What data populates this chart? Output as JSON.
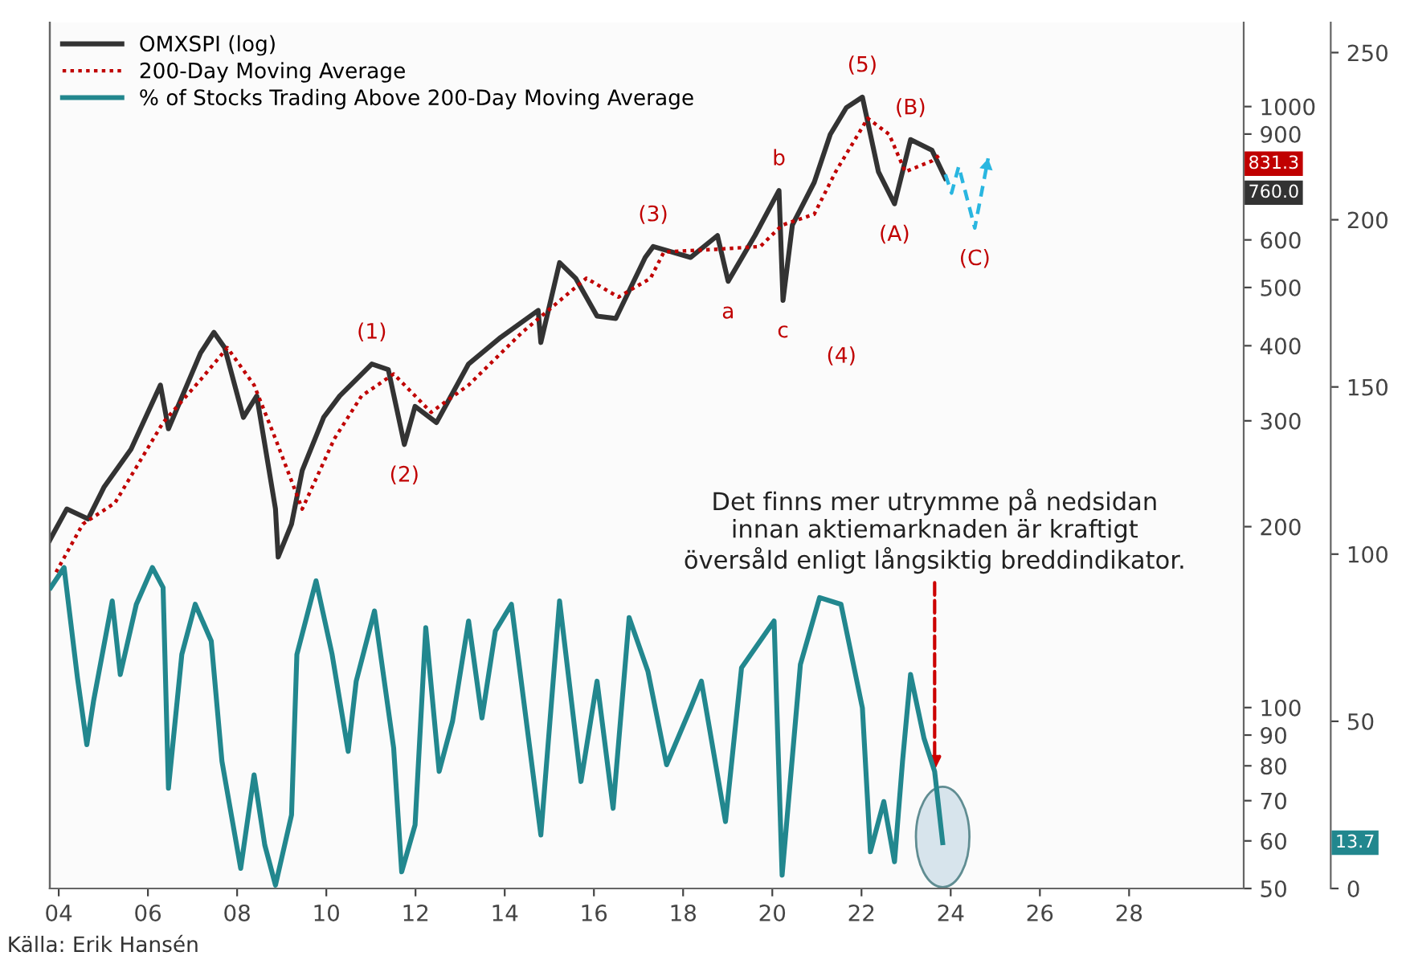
{
  "chart_data": {
    "type": "line",
    "xlim": [
      2003.8,
      2030.57
    ],
    "xticks": [
      {
        "value": 2004,
        "label": "04"
      },
      {
        "value": 2006,
        "label": "06"
      },
      {
        "value": 2008,
        "label": "08"
      },
      {
        "value": 2010,
        "label": "10"
      },
      {
        "value": 2012,
        "label": "12"
      },
      {
        "value": 2014,
        "label": "14"
      },
      {
        "value": 2016,
        "label": "16"
      },
      {
        "value": 2018,
        "label": "18"
      },
      {
        "value": 2020,
        "label": "20"
      },
      {
        "value": 2022,
        "label": "22"
      },
      {
        "value": 2024,
        "label": "24"
      },
      {
        "value": 2026,
        "label": "26"
      },
      {
        "value": 2028,
        "label": "28"
      }
    ],
    "log": true,
    "ylim": [
      50,
      1380
    ],
    "yticks": [
      50,
      60,
      70,
      80,
      90,
      100,
      200,
      300,
      400,
      500,
      600,
      900,
      1000
    ],
    "y2lim": [
      0,
      259
    ],
    "y2ticks": [
      0,
      50,
      100,
      150,
      200,
      250
    ],
    "legend": "top left",
    "grid": false,
    "series": [
      {
        "name": "OMXSPI (log)",
        "color": "#333333",
        "line_style": "solid",
        "x": [
          2003.8,
          2004.18,
          2004.66,
          2005.02,
          2005.62,
          2006.28,
          2006.46,
          2007.18,
          2007.48,
          2007.72,
          2008.14,
          2008.44,
          2008.86,
          2008.92,
          2009.22,
          2009.46,
          2009.94,
          2010.3,
          2011.02,
          2011.39,
          2011.75,
          2011.99,
          2012.47,
          2013.19,
          2013.91,
          2014.75,
          2014.81,
          2015.23,
          2015.59,
          2016.07,
          2016.49,
          2017.15,
          2017.33,
          2018.17,
          2018.77,
          2019.01,
          2019.61,
          2020.15,
          2020.24,
          2020.45,
          2020.94,
          2021.3,
          2021.66,
          2022.02,
          2022.38,
          2022.74,
          2023.1,
          2023.58,
          2023.88
        ],
        "values": [
          190,
          214,
          206,
          233,
          269,
          344,
          291,
          389,
          421,
          397,
          304,
          330,
          214,
          178,
          202,
          248,
          304,
          330,
          373,
          365,
          274,
          317,
          298,
          373,
          413,
          458,
          405,
          550,
          518,
          448,
          444,
          561,
          585,
          561,
          610,
          512,
          610,
          725,
          476,
          635,
          748,
          899,
          996,
          1037,
          779,
          689,
          881,
          846,
          760.0
        ]
      },
      {
        "name": "200-Day Moving Average",
        "color": "#c00000",
        "line_style": "dotted",
        "x": [
          2003.94,
          2004.54,
          2005.26,
          2006.34,
          2007.18,
          2007.78,
          2008.38,
          2008.86,
          2009.46,
          2010.18,
          2010.79,
          2011.51,
          2012.35,
          2013.19,
          2014.39,
          2015.83,
          2016.55,
          2017.27,
          2017.57,
          2018.77,
          2019.73,
          2020.22,
          2020.94,
          2021.42,
          2022.14,
          2022.62,
          2022.98,
          2023.58,
          2023.76
        ],
        "values": [
          168,
          202,
          219,
          298,
          351,
          397,
          344,
          280,
          214,
          280,
          330,
          359,
          310,
          344,
          421,
          518,
          482,
          518,
          573,
          579,
          585,
          635,
          662,
          779,
          956,
          899,
          779,
          812,
          831.3
        ]
      },
      {
        "name": "% of Stocks Trading Above 200-Day Moving Average",
        "color": "#22878e",
        "line_style": "solid",
        "axis": "y2",
        "x": [
          2003.82,
          2004.12,
          2004.42,
          2004.63,
          2004.78,
          2005.2,
          2005.38,
          2005.74,
          2006.1,
          2006.34,
          2006.46,
          2006.76,
          2007.06,
          2007.42,
          2007.66,
          2008.08,
          2008.38,
          2008.62,
          2008.86,
          2009.22,
          2009.34,
          2009.77,
          2010.13,
          2010.49,
          2010.67,
          2011.08,
          2011.51,
          2011.69,
          2011.99,
          2012.23,
          2012.53,
          2012.83,
          2013.19,
          2013.49,
          2013.79,
          2014.15,
          2014.81,
          2015.23,
          2015.71,
          2016.07,
          2016.43,
          2016.79,
          2017.21,
          2017.63,
          2018.17,
          2018.41,
          2018.95,
          2019.31,
          2020.04,
          2020.22,
          2020.63,
          2021.06,
          2021.54,
          2022.02,
          2022.2,
          2022.5,
          2022.74,
          2022.92,
          2023.1,
          2023.4,
          2023.64,
          2023.82
        ],
        "values": [
          90,
          96,
          63,
          43,
          56,
          86,
          64,
          85,
          96,
          90,
          30,
          70,
          85,
          74,
          38,
          6,
          34,
          13,
          1,
          22,
          70,
          92,
          70,
          41,
          62,
          83,
          42,
          5,
          19,
          78,
          35,
          50,
          80,
          51,
          77,
          85,
          16,
          86,
          32,
          62,
          24,
          81,
          65,
          37,
          54,
          62,
          20,
          66,
          80,
          4,
          67,
          87,
          85,
          54,
          11,
          26,
          8,
          38,
          64,
          45,
          35,
          13.7
        ]
      },
      {
        "color": "#29b6e0",
        "line_style": "dashed",
        "x": [
          2023.88,
          2024.02,
          2024.18,
          2024.54,
          2024.84
        ],
        "values": [
          771,
          718,
          795,
          628,
          820
        ]
      }
    ],
    "annotations": [
      {
        "text": "(1)",
        "x": 2011.02,
        "y": 373
      },
      {
        "text": "(2)",
        "x": 2011.75,
        "y": 274
      },
      {
        "text": "(3)",
        "x": 2017.33,
        "y": 585
      },
      {
        "text": "c",
        "x": 2020.24,
        "y": 476
      },
      {
        "text": "(5)",
        "x": 2022.02,
        "y": 1037
      },
      {
        "text": "(A)",
        "x": 2022.74,
        "y": 689
      },
      {
        "text": "(B)",
        "x": 2023.1,
        "y": 881
      },
      {
        "text": "(C)",
        "x": 2024.54,
        "y": 628
      },
      {
        "text": "a",
        "x": 2019.01,
        "y": 512
      },
      {
        "text": "b",
        "x": 2020.15,
        "y": 725
      },
      "760.0",
      "831.3",
      "13.7",
      "(4)",
      {
        "text": "Det finns mer utrymme på nedsidan\ninnan aktiemarknaden är kraftigt\növersåld enligt långsiktig breddindikator.",
        "x": 2023.64,
        "y": 78.7
      },
      "Källa: Erik Hansén"
    ]
  }
}
